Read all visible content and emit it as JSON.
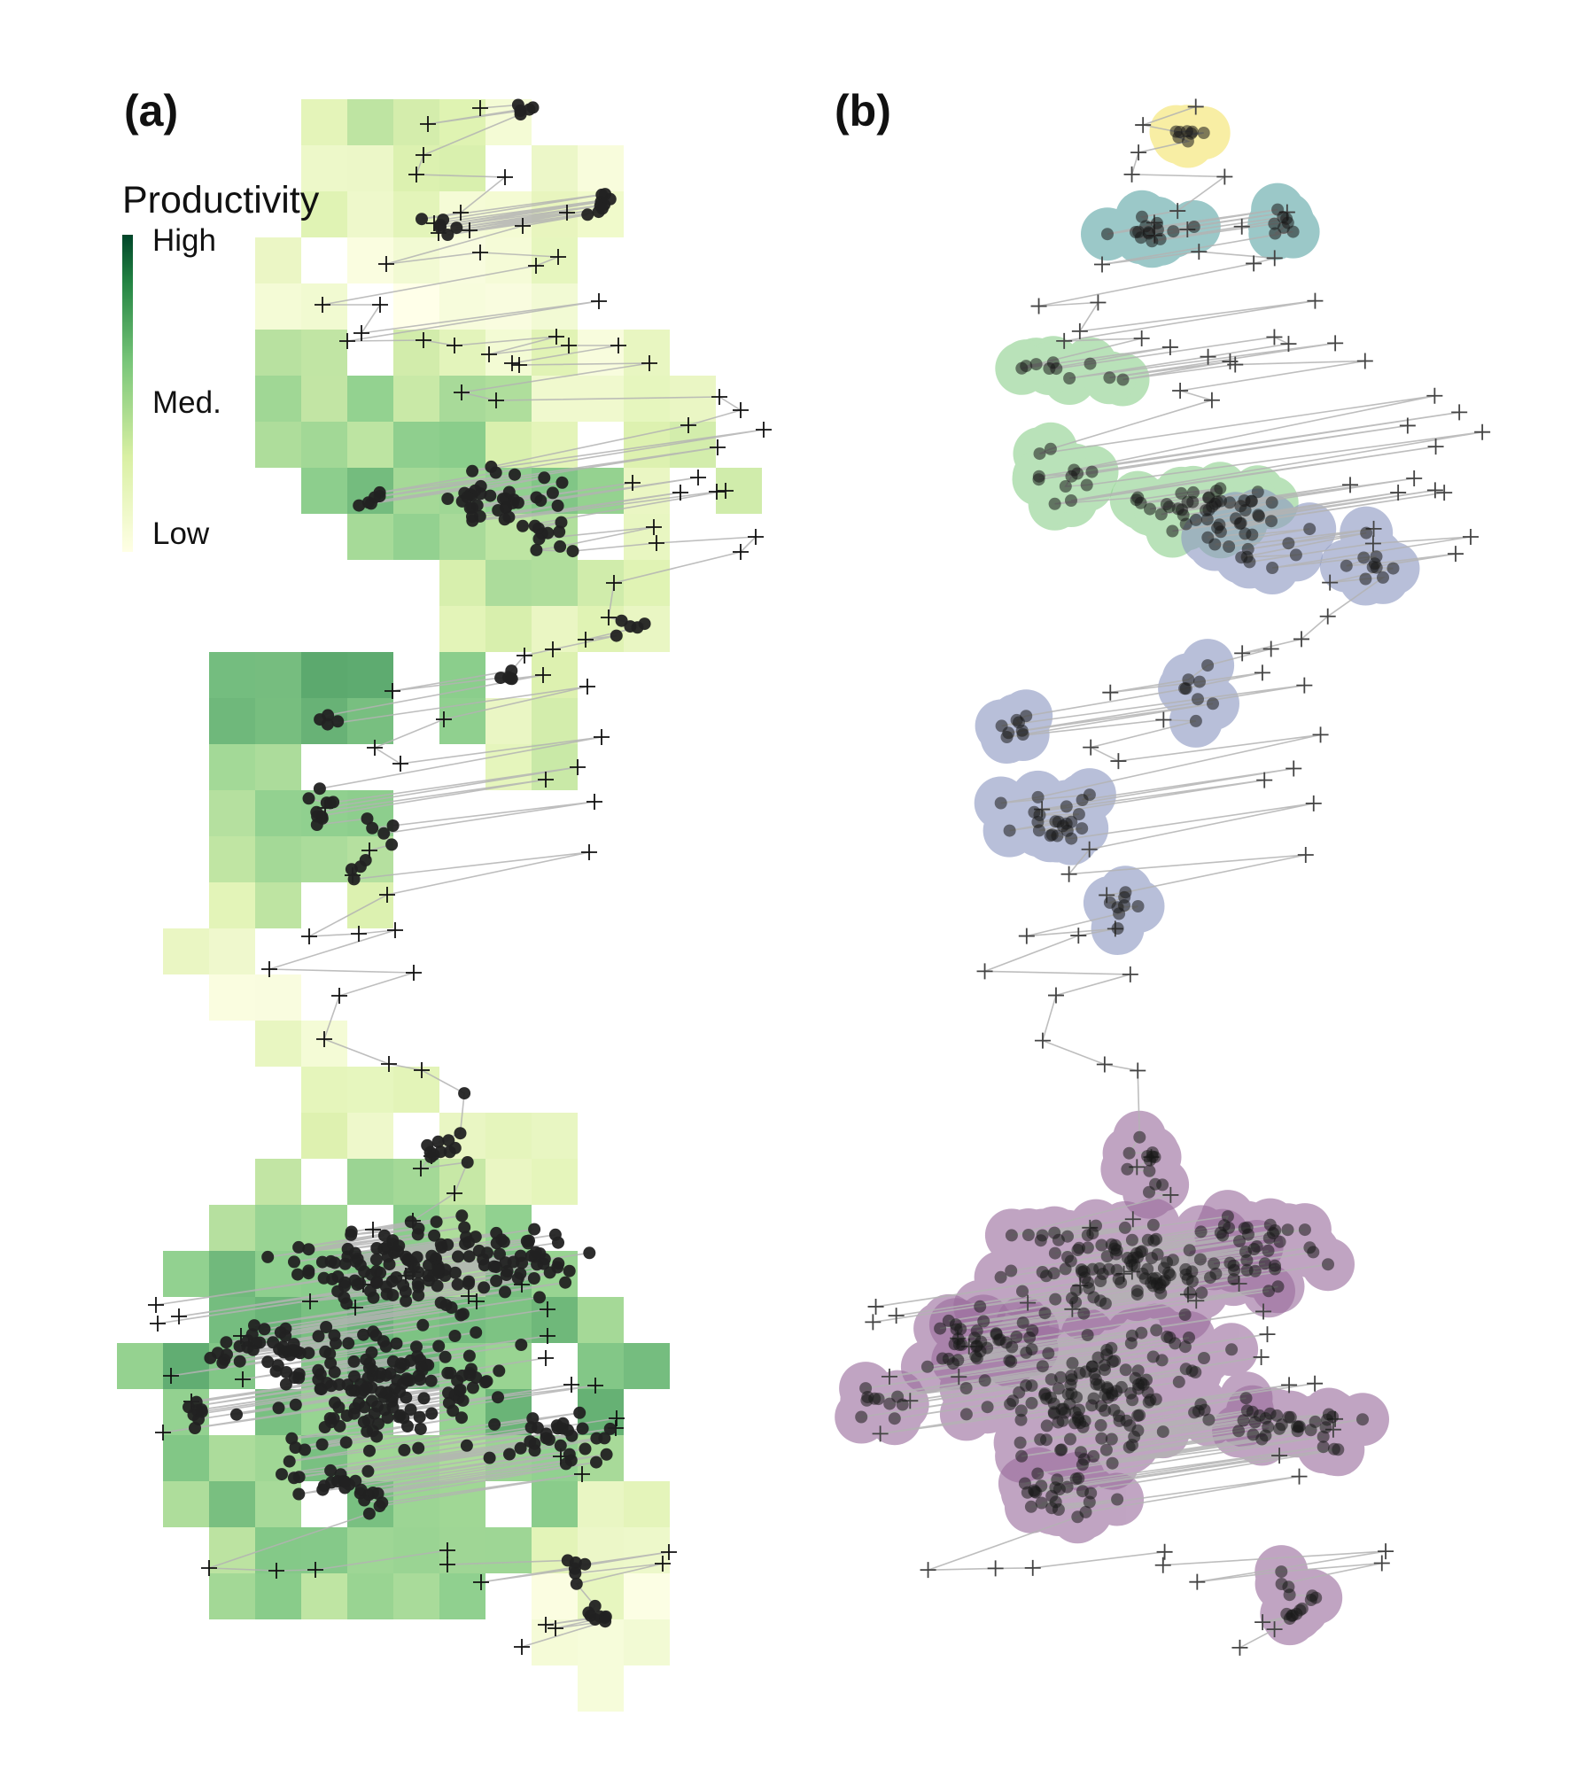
{
  "panels": {
    "a": {
      "label": "(a)",
      "legend": {
        "title": "Productivity",
        "high": "High",
        "medium": "Med.",
        "low": "Low",
        "colors": [
          "#ffffe5",
          "#d9f0a3",
          "#78c679",
          "#238443",
          "#004529"
        ]
      }
    },
    "b": {
      "label": "(b)",
      "cluster_colors": {
        "yellow": "#f5e46e",
        "teal": "#5fa8a8",
        "green": "#8fd18f",
        "blue": "#8e99c2",
        "purple": "#9b6e9e"
      }
    }
  },
  "symbols": {
    "point": "filled-circle",
    "cross": "plus-marker",
    "path_color": "#b3b3b3",
    "point_color": "#222222"
  }
}
